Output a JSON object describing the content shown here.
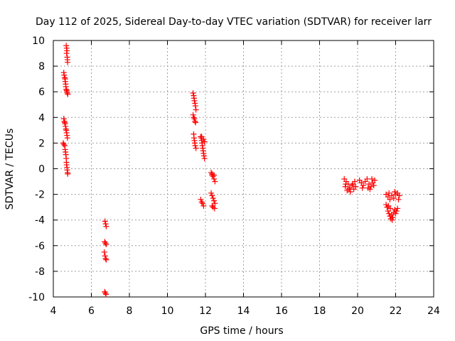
{
  "chart_data": {
    "type": "scatter",
    "title": "Day 112 of 2025, Sidereal Day-to-day VTEC variation (SDTVAR) for receiver larr",
    "xlabel": "GPS time / hours",
    "ylabel": "SDTVAR / TECUs",
    "xlim": [
      4,
      24
    ],
    "ylim": [
      -10,
      10
    ],
    "xticks": [
      "4",
      "6",
      "8",
      "10",
      "12",
      "14",
      "16",
      "18",
      "20",
      "22",
      "24"
    ],
    "yticks": [
      "10",
      "8",
      "6",
      "4",
      "2",
      "0",
      "-2",
      "-4",
      "-6",
      "-8",
      "-10"
    ],
    "grid": true,
    "marker": "plus",
    "color": "#ff0000",
    "series": [
      {
        "name": "SDTVAR",
        "points": [
          [
            4.68,
            9.6
          ],
          [
            4.7,
            9.4
          ],
          [
            4.72,
            9.2
          ],
          [
            4.7,
            9.0
          ],
          [
            4.73,
            8.7
          ],
          [
            4.74,
            8.5
          ],
          [
            4.75,
            8.3
          ],
          [
            4.55,
            7.5
          ],
          [
            4.57,
            7.3
          ],
          [
            4.6,
            7.1
          ],
          [
            4.62,
            7.0
          ],
          [
            4.63,
            6.8
          ],
          [
            4.65,
            6.6
          ],
          [
            4.66,
            6.4
          ],
          [
            4.68,
            6.2
          ],
          [
            4.7,
            6.1
          ],
          [
            4.72,
            6.0
          ],
          [
            4.74,
            5.9
          ],
          [
            4.76,
            5.8
          ],
          [
            4.55,
            3.9
          ],
          [
            4.58,
            3.7
          ],
          [
            4.6,
            3.6
          ],
          [
            4.62,
            3.5
          ],
          [
            4.64,
            3.3
          ],
          [
            4.66,
            3.1
          ],
          [
            4.68,
            3.0
          ],
          [
            4.7,
            2.8
          ],
          [
            4.72,
            2.6
          ],
          [
            4.74,
            2.4
          ],
          [
            4.52,
            2.0
          ],
          [
            4.55,
            1.9
          ],
          [
            4.6,
            1.8
          ],
          [
            4.62,
            1.5
          ],
          [
            4.64,
            1.3
          ],
          [
            4.66,
            1.1
          ],
          [
            4.68,
            0.8
          ],
          [
            4.69,
            0.5
          ],
          [
            4.7,
            0.3
          ],
          [
            4.72,
            0.1
          ],
          [
            4.73,
            -0.1
          ],
          [
            4.75,
            -0.3
          ],
          [
            4.76,
            -0.4
          ],
          [
            6.72,
            -4.1
          ],
          [
            6.75,
            -4.3
          ],
          [
            6.78,
            -4.5
          ],
          [
            6.7,
            -5.7
          ],
          [
            6.74,
            -5.8
          ],
          [
            6.78,
            -5.9
          ],
          [
            6.68,
            -6.5
          ],
          [
            6.72,
            -6.8
          ],
          [
            6.75,
            -7.0
          ],
          [
            6.78,
            -7.1
          ],
          [
            6.7,
            -9.6
          ],
          [
            6.74,
            -9.7
          ],
          [
            6.77,
            -9.8
          ],
          [
            11.35,
            5.9
          ],
          [
            11.38,
            5.7
          ],
          [
            11.4,
            5.5
          ],
          [
            11.42,
            5.3
          ],
          [
            11.45,
            5.1
          ],
          [
            11.47,
            4.9
          ],
          [
            11.5,
            4.6
          ],
          [
            11.35,
            4.2
          ],
          [
            11.38,
            4.0
          ],
          [
            11.42,
            3.9
          ],
          [
            11.45,
            3.7
          ],
          [
            11.48,
            3.6
          ],
          [
            11.38,
            2.7
          ],
          [
            11.4,
            2.4
          ],
          [
            11.42,
            2.2
          ],
          [
            11.44,
            2.0
          ],
          [
            11.46,
            1.8
          ],
          [
            11.5,
            1.6
          ],
          [
            11.75,
            2.5
          ],
          [
            11.78,
            2.4
          ],
          [
            11.8,
            2.2
          ],
          [
            11.82,
            2.0
          ],
          [
            11.84,
            1.8
          ],
          [
            11.86,
            1.6
          ],
          [
            11.88,
            1.4
          ],
          [
            11.9,
            1.2
          ],
          [
            11.92,
            1.0
          ],
          [
            11.95,
            0.8
          ],
          [
            11.8,
            2.5
          ],
          [
            11.9,
            2.3
          ],
          [
            11.95,
            2.1
          ],
          [
            11.75,
            -2.4
          ],
          [
            11.8,
            -2.6
          ],
          [
            11.85,
            -2.7
          ],
          [
            11.9,
            -2.9
          ],
          [
            12.3,
            -0.3
          ],
          [
            12.35,
            -0.5
          ],
          [
            12.4,
            -0.6
          ],
          [
            12.45,
            -0.8
          ],
          [
            12.5,
            -1.0
          ],
          [
            12.35,
            -0.4
          ],
          [
            12.45,
            -0.5
          ],
          [
            12.3,
            -1.9
          ],
          [
            12.35,
            -2.1
          ],
          [
            12.4,
            -2.3
          ],
          [
            12.45,
            -2.5
          ],
          [
            12.5,
            -2.7
          ],
          [
            12.35,
            -2.9
          ],
          [
            12.4,
            -3.0
          ],
          [
            12.48,
            -3.1
          ],
          [
            19.3,
            -0.8
          ],
          [
            19.4,
            -1.0
          ],
          [
            19.5,
            -1.2
          ],
          [
            19.35,
            -1.4
          ],
          [
            19.6,
            -1.5
          ],
          [
            19.7,
            -1.3
          ],
          [
            19.8,
            -1.6
          ],
          [
            19.9,
            -1.4
          ],
          [
            19.45,
            -1.7
          ],
          [
            19.55,
            -1.6
          ],
          [
            19.75,
            -1.2
          ],
          [
            19.85,
            -1.0
          ],
          [
            19.38,
            -1.2
          ],
          [
            19.62,
            -1.8
          ],
          [
            20.1,
            -0.9
          ],
          [
            20.2,
            -1.1
          ],
          [
            20.3,
            -1.3
          ],
          [
            20.4,
            -1.0
          ],
          [
            20.5,
            -0.8
          ],
          [
            20.6,
            -1.2
          ],
          [
            20.7,
            -1.4
          ],
          [
            20.8,
            -1.1
          ],
          [
            20.9,
            -0.9
          ],
          [
            20.55,
            -1.5
          ],
          [
            20.65,
            -1.6
          ],
          [
            20.75,
            -0.8
          ],
          [
            20.85,
            -1.3
          ],
          [
            20.25,
            -1.5
          ],
          [
            21.5,
            -2.0
          ],
          [
            21.6,
            -2.2
          ],
          [
            21.7,
            -2.4
          ],
          [
            21.8,
            -2.1
          ],
          [
            21.9,
            -2.3
          ],
          [
            22.0,
            -2.0
          ],
          [
            22.1,
            -1.9
          ],
          [
            22.2,
            -2.1
          ],
          [
            21.65,
            -1.9
          ],
          [
            21.95,
            -1.8
          ],
          [
            22.15,
            -2.4
          ],
          [
            21.5,
            -2.8
          ],
          [
            21.55,
            -3.0
          ],
          [
            21.6,
            -3.3
          ],
          [
            21.65,
            -3.5
          ],
          [
            21.7,
            -3.7
          ],
          [
            21.75,
            -3.9
          ],
          [
            21.8,
            -3.6
          ],
          [
            21.85,
            -3.8
          ],
          [
            21.9,
            -3.4
          ],
          [
            21.95,
            -3.2
          ],
          [
            22.0,
            -3.5
          ],
          [
            22.05,
            -3.3
          ],
          [
            22.1,
            -3.1
          ],
          [
            21.62,
            -2.9
          ],
          [
            21.72,
            -3.1
          ],
          [
            21.82,
            -4.0
          ]
        ]
      }
    ]
  }
}
